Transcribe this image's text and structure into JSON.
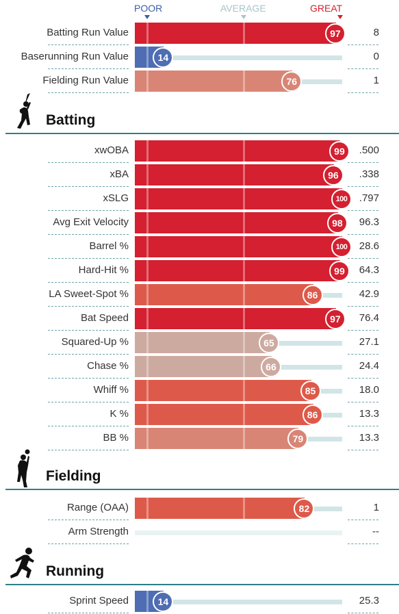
{
  "scale": {
    "poor": "POOR",
    "average": "AVERAGE",
    "great": "GREAT"
  },
  "colors": {
    "poor": "#3a5ca8",
    "average": "#a8c4c8",
    "great": "#d42030",
    "rule": "#2e7f86"
  },
  "summary": [
    {
      "label": "Batting Run Value",
      "percentile": 97,
      "value": "8"
    },
    {
      "label": "Baserunning Run Value",
      "percentile": 14,
      "value": "0"
    },
    {
      "label": "Fielding Run Value",
      "percentile": 76,
      "value": "1"
    }
  ],
  "sections": {
    "batting": {
      "title": "Batting",
      "icon": "batter-icon"
    },
    "fielding": {
      "title": "Fielding",
      "icon": "fielder-icon"
    },
    "running": {
      "title": "Running",
      "icon": "runner-icon"
    }
  },
  "batting": [
    {
      "label": "xwOBA",
      "percentile": 99,
      "value": ".500"
    },
    {
      "label": "xBA",
      "percentile": 96,
      "value": ".338"
    },
    {
      "label": "xSLG",
      "percentile": 100,
      "value": ".797"
    },
    {
      "label": "Avg Exit Velocity",
      "percentile": 98,
      "value": "96.3"
    },
    {
      "label": "Barrel %",
      "percentile": 100,
      "value": "28.6"
    },
    {
      "label": "Hard-Hit %",
      "percentile": 99,
      "value": "64.3"
    },
    {
      "label": "LA Sweet-Spot %",
      "percentile": 86,
      "value": "42.9"
    },
    {
      "label": "Bat Speed",
      "percentile": 97,
      "value": "76.4"
    },
    {
      "label": "Squared-Up %",
      "percentile": 65,
      "value": "27.1"
    },
    {
      "label": "Chase %",
      "percentile": 66,
      "value": "24.4"
    },
    {
      "label": "Whiff %",
      "percentile": 85,
      "value": "18.0"
    },
    {
      "label": "K %",
      "percentile": 86,
      "value": "13.3"
    },
    {
      "label": "BB %",
      "percentile": 79,
      "value": "13.3"
    }
  ],
  "fielding": [
    {
      "label": "Range (OAA)",
      "percentile": 82,
      "value": "1"
    },
    {
      "label": "Arm Strength",
      "percentile": null,
      "value": "--"
    }
  ],
  "running": [
    {
      "label": "Sprint Speed",
      "percentile": 14,
      "value": "25.3"
    }
  ]
}
